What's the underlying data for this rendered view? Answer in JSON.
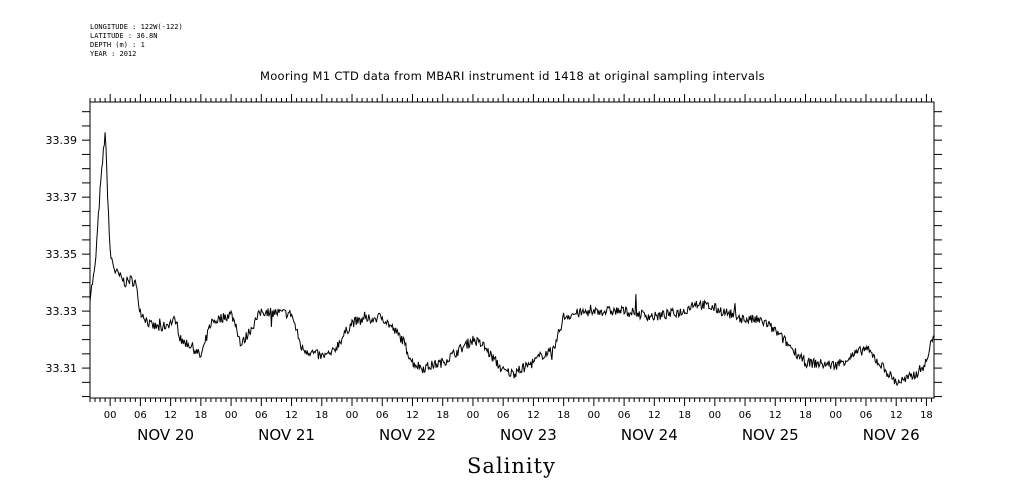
{
  "header": {
    "longitude": "LONGITUDE : 122W(-122)",
    "latitude": "LATITUDE : 36.8N",
    "depth": "DEPTH (m) : 1",
    "year": "YEAR : 2012"
  },
  "chart_data": {
    "type": "line",
    "title": "Mooring M1 CTD data from MBARI instrument id 1418 at original sampling intervals",
    "xlabel": "Salinity",
    "ylabel": "",
    "ylim": [
      33.2995,
      33.4034
    ],
    "xlim": [
      "2012-11-19T20:00",
      "2012-11-26T19:30"
    ],
    "y_ticks": [
      "33.31",
      "33.33",
      "33.35",
      "33.37",
      "33.39"
    ],
    "x_hour_ticks": [
      "00",
      "06",
      "12",
      "18",
      "00",
      "06",
      "12",
      "18",
      "00",
      "06",
      "12",
      "18",
      "00",
      "06",
      "12",
      "18",
      "00",
      "06",
      "12",
      "18",
      "00",
      "06",
      "12",
      "18",
      "00",
      "06",
      "12",
      "18"
    ],
    "x_day_labels": [
      "NOV 20",
      "NOV 21",
      "NOV 22",
      "NOV 23",
      "NOV 24",
      "NOV 25",
      "NOV 26"
    ],
    "grid": false,
    "series": [
      {
        "color": "#000000",
        "x": [
          "2012-11-19T20:00",
          "2012-11-19T21:00",
          "2012-11-19T22:00",
          "2012-11-19T23:00",
          "2012-11-20T00:00",
          "2012-11-20T01:00",
          "2012-11-20T02:00",
          "2012-11-20T03:00",
          "2012-11-20T04:00",
          "2012-11-20T05:00",
          "2012-11-20T06:00",
          "2012-11-20T08:00",
          "2012-11-20T10:00",
          "2012-11-20T12:00",
          "2012-11-20T13:00",
          "2012-11-20T14:00",
          "2012-11-20T16:00",
          "2012-11-20T18:00",
          "2012-11-20T20:00",
          "2012-11-21T00:00",
          "2012-11-21T01:00",
          "2012-11-21T02:00",
          "2012-11-21T06:00",
          "2012-11-21T12:00",
          "2012-11-21T14:00",
          "2012-11-21T18:00",
          "2012-11-21T20:00",
          "2012-11-22T00:00",
          "2012-11-22T06:00",
          "2012-11-22T10:00",
          "2012-11-22T12:00",
          "2012-11-22T14:00",
          "2012-11-22T18:00",
          "2012-11-23T00:00",
          "2012-11-23T02:00",
          "2012-11-23T06:00",
          "2012-11-23T08:00",
          "2012-11-23T12:00",
          "2012-11-23T14:00",
          "2012-11-23T16:00",
          "2012-11-23T18:00",
          "2012-11-23T20:00",
          "2012-11-24T00:00",
          "2012-11-24T06:00",
          "2012-11-24T12:00",
          "2012-11-24T18:00",
          "2012-11-24T20:00",
          "2012-11-25T00:00",
          "2012-11-25T06:00",
          "2012-11-25T08:00",
          "2012-11-25T10:00",
          "2012-11-25T12:00",
          "2012-11-25T18:00",
          "2012-11-26T00:00",
          "2012-11-26T06:00",
          "2012-11-26T12:00",
          "2012-11-26T14:00",
          "2012-11-26T16:00",
          "2012-11-26T18:00",
          "2012-11-26T19:30"
        ],
        "y": [
          33.335,
          33.345,
          33.372,
          33.393,
          33.35,
          33.344,
          33.342,
          33.34,
          33.341,
          33.34,
          33.33,
          33.325,
          33.324,
          33.326,
          33.327,
          33.32,
          33.318,
          33.314,
          33.326,
          33.329,
          33.325,
          33.318,
          33.33,
          33.329,
          33.317,
          33.314,
          33.315,
          33.326,
          33.328,
          33.32,
          33.312,
          33.31,
          33.312,
          33.32,
          33.318,
          33.309,
          33.308,
          33.312,
          33.315,
          33.316,
          33.328,
          33.329,
          33.33,
          33.33,
          33.328,
          33.33,
          33.333,
          33.331,
          33.327,
          33.327,
          33.326,
          33.323,
          33.312,
          33.311,
          33.317,
          33.305,
          33.306,
          33.308,
          33.312,
          33.323
        ]
      }
    ]
  }
}
